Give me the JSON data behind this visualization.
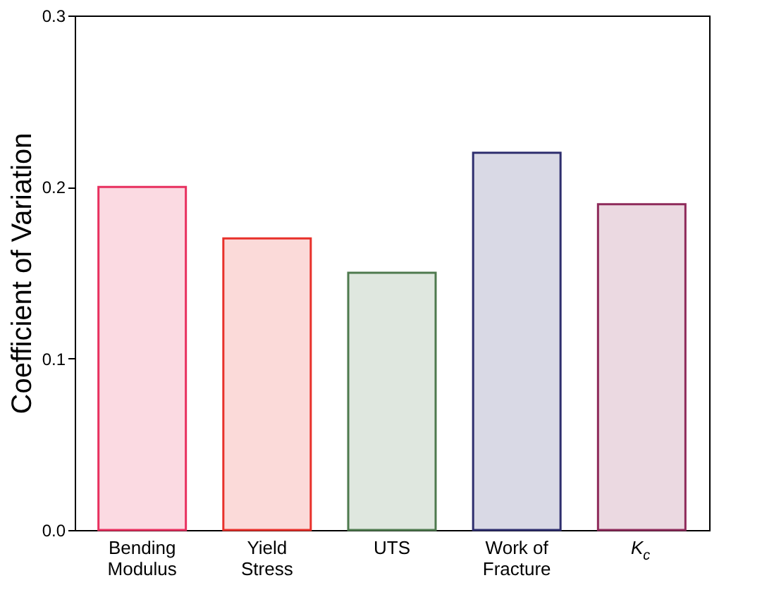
{
  "chart_data": {
    "type": "bar",
    "ylabel": "Coefficient of Variation",
    "categories": [
      "Bending Modulus",
      "Yield Stress",
      "UTS",
      "Work of Fracture",
      "K$_{c}$"
    ],
    "values": [
      0.2,
      0.17,
      0.15,
      0.22,
      0.19
    ],
    "colors": [
      "#e8305f",
      "#e8302a",
      "#4e7a4e",
      "#2e2e6e",
      "#8e2a5a"
    ],
    "ylim": [
      0,
      0.3
    ],
    "yticks": [
      {
        "value": 0,
        "label": "0.0"
      },
      {
        "value": 0.1,
        "label": "0.1"
      },
      {
        "value": 0.2,
        "label": "0.2"
      },
      {
        "value": 0.3,
        "label": "0.3"
      }
    ],
    "grid": false
  }
}
